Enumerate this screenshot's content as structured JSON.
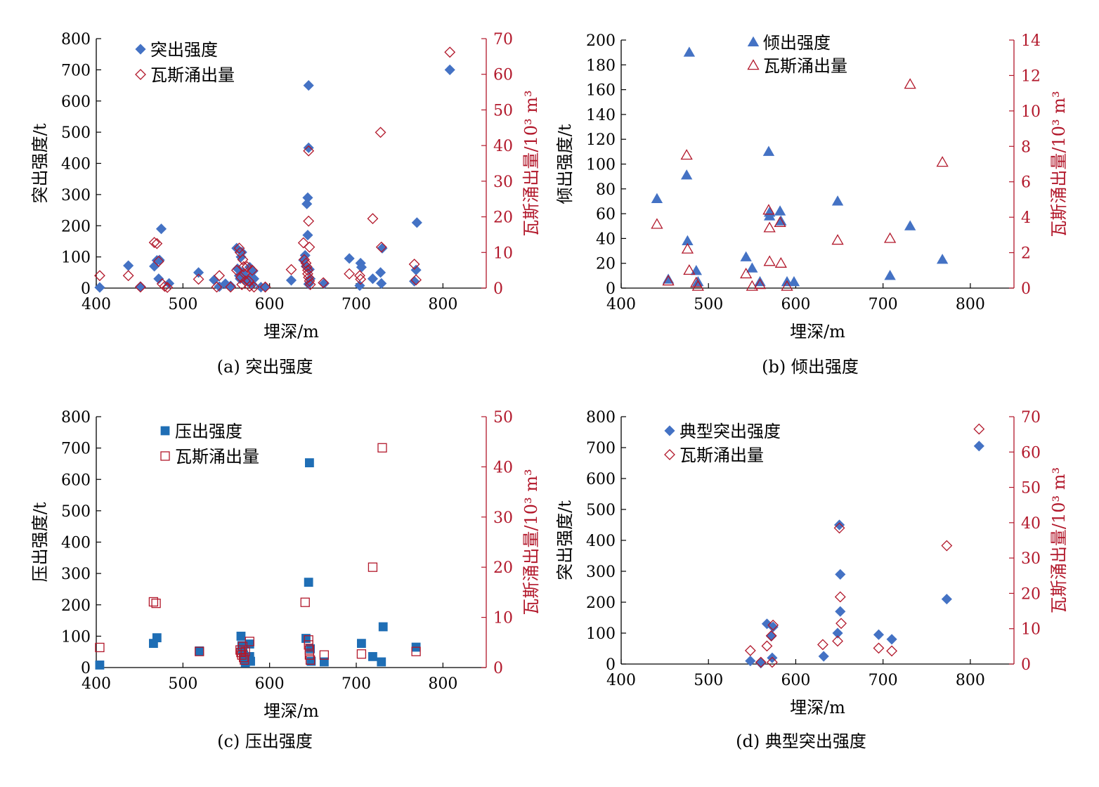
{
  "colors": {
    "blue": "#4472c4",
    "blue_square": "#1f6eb5",
    "red": "#b2182b"
  },
  "chart_data": [
    {
      "type": "scatter",
      "caption": "(a) 突出强度",
      "xlabel": "埋深/m",
      "ylabel": "突出强度/t",
      "ylabel_right": "瓦斯涌出量/10³ m³",
      "xlim": [
        400,
        850
      ],
      "xticks": [
        400,
        500,
        600,
        700,
        800
      ],
      "ylim": [
        0,
        800
      ],
      "yticks": [
        0,
        100,
        200,
        300,
        400,
        500,
        600,
        700,
        800
      ],
      "ylim_right": [
        0,
        70
      ],
      "yticks_right": [
        0,
        10,
        20,
        30,
        40,
        50,
        60,
        70
      ],
      "legend_position": "top-left",
      "series": [
        {
          "name": "突出强度",
          "marker": "diamond-filled",
          "color": "#4472c4",
          "axis": "left",
          "x": [
            404,
            437,
            451,
            467,
            470,
            472,
            473,
            475,
            484,
            518,
            536,
            542,
            549,
            555,
            562,
            563,
            565,
            566,
            567,
            568,
            569,
            570,
            571,
            572,
            575,
            577,
            578,
            580,
            581,
            582,
            590,
            595,
            625,
            639,
            641,
            642,
            643,
            644,
            644,
            645,
            645,
            645,
            646,
            647,
            663,
            692,
            704,
            705,
            706,
            719,
            728,
            729,
            730,
            767,
            769,
            770,
            808
          ],
          "y": [
            2,
            72,
            5,
            70,
            89,
            30,
            90,
            190,
            15,
            50,
            26,
            5,
            14,
            7,
            128,
            62,
            40,
            30,
            100,
            115,
            50,
            44,
            27,
            28,
            20,
            67,
            35,
            12,
            55,
            30,
            3,
            3,
            25,
            90,
            105,
            70,
            270,
            290,
            170,
            450,
            650,
            13,
            60,
            30,
            15,
            95,
            8,
            80,
            67,
            30,
            50,
            15,
            128,
            22,
            58,
            210,
            700
          ]
        },
        {
          "name": "瓦斯涌出量",
          "marker": "diamond-open",
          "color": "#b2182b",
          "axis": "right",
          "x": [
            404,
            437,
            451,
            467,
            470,
            472,
            476,
            479,
            482,
            518,
            539,
            542,
            555,
            562,
            565,
            566,
            567,
            568,
            569,
            570,
            571,
            572,
            574,
            576,
            577,
            580,
            582,
            595,
            625,
            639,
            640,
            642,
            643,
            644,
            644,
            645,
            645,
            645,
            646,
            646,
            647,
            662,
            692,
            704,
            705,
            719,
            728,
            729,
            767,
            769,
            808
          ],
          "y": [
            3.5,
            3.5,
            0.3,
            12.8,
            12.5,
            7.5,
            1.2,
            0.5,
            0.2,
            2.5,
            0.3,
            3.5,
            0.3,
            5,
            11.2,
            10,
            3,
            1,
            8,
            6,
            4,
            2,
            6,
            2,
            0.5,
            5,
            0.3,
            0.3,
            5.2,
            12.7,
            8,
            7,
            6,
            5,
            4,
            18.8,
            38.5,
            3,
            11.5,
            2,
            1,
            1.5,
            4,
            3.5,
            2.5,
            19.5,
            43.7,
            11.5,
            6.7,
            2.3,
            66.2
          ]
        }
      ]
    },
    {
      "type": "scatter",
      "caption": "(b) 倾出强度",
      "xlabel": "埋深/m",
      "ylabel": "倾出强度/t",
      "ylabel_right": "瓦斯涌出量/10³ m³",
      "xlim": [
        400,
        850
      ],
      "xticks": [
        400,
        500,
        600,
        700,
        800
      ],
      "ylim": [
        0,
        200
      ],
      "yticks": [
        0,
        20,
        40,
        60,
        80,
        100,
        120,
        140,
        160,
        180,
        200
      ],
      "ylim_right": [
        0,
        14
      ],
      "yticks_right": [
        0,
        2,
        4,
        6,
        8,
        10,
        12,
        14
      ],
      "legend_position": "top-center",
      "series": [
        {
          "name": "倾出强度",
          "marker": "triangle-filled",
          "color": "#4472c4",
          "axis": "left",
          "x": [
            441,
            454,
            475,
            476,
            478,
            486,
            488,
            543,
            550,
            559,
            569,
            570,
            570,
            582,
            583,
            590,
            598,
            648,
            708,
            731,
            768
          ],
          "y": [
            72,
            7,
            91,
            38,
            190,
            14,
            5,
            25,
            16,
            5,
            110,
            61,
            58,
            62,
            54,
            5,
            5,
            70,
            10,
            50,
            23
          ],
          "visible_in_legend": true
        },
        {
          "name": "瓦斯涌出量",
          "marker": "triangle-open",
          "color": "#b2182b",
          "axis": "right",
          "x": [
            441,
            454,
            475,
            476,
            478,
            486,
            488,
            543,
            550,
            559,
            569,
            570,
            570,
            582,
            583,
            590,
            648,
            708,
            731,
            768
          ],
          "y": [
            3.6,
            0.4,
            7.5,
            2.2,
            1,
            0.3,
            0.1,
            0.8,
            0.1,
            0.2,
            4.4,
            3.4,
            1.5,
            3.7,
            1.4,
            0.1,
            2.7,
            2.8,
            11.5,
            7.1
          ]
        }
      ]
    },
    {
      "type": "scatter",
      "caption": "(c) 压出强度",
      "xlabel": "埋深/m",
      "ylabel": "压出强度/t",
      "ylabel_right": "瓦斯涌出量/10³ m³",
      "xlim": [
        400,
        850
      ],
      "xticks": [
        400,
        500,
        600,
        700,
        800
      ],
      "ylim": [
        0,
        800
      ],
      "yticks": [
        0,
        100,
        200,
        300,
        400,
        500,
        600,
        700,
        800
      ],
      "ylim_right": [
        0,
        50
      ],
      "yticks_right": [
        0,
        10,
        20,
        30,
        40,
        50
      ],
      "legend_position": "top-left",
      "series": [
        {
          "name": "压出强度",
          "marker": "square-filled",
          "color": "#1f6eb5",
          "axis": "left",
          "x": [
            404,
            466,
            470,
            519,
            567,
            568,
            569,
            570,
            571,
            572,
            577,
            577,
            578,
            642,
            645,
            646,
            647,
            648,
            663,
            706,
            719,
            729,
            731,
            769
          ],
          "y": [
            8,
            77,
            95,
            53,
            100,
            70,
            55,
            40,
            25,
            15,
            75,
            35,
            20,
            93,
            272,
            653,
            60,
            20,
            18,
            77,
            35,
            18,
            130,
            65
          ]
        },
        {
          "name": "瓦斯涌出量",
          "marker": "square-open",
          "color": "#b2182b",
          "axis": "right",
          "x": [
            404,
            466,
            469,
            519,
            566,
            567,
            568,
            569,
            570,
            571,
            572,
            577,
            641,
            645,
            645,
            646,
            646,
            647,
            663,
            706,
            719,
            730,
            769
          ],
          "y": [
            4,
            13.1,
            12.8,
            3.2,
            3.5,
            3,
            2.5,
            4.2,
            2,
            1.5,
            3.2,
            5.2,
            13,
            5.5,
            4.5,
            3.5,
            2.5,
            1.5,
            2.5,
            2.7,
            20,
            43.8,
            3.2
          ]
        }
      ]
    },
    {
      "type": "scatter",
      "caption": "(d) 典型突出强度",
      "xlabel": "埋深/m",
      "ylabel": "突出强度/t",
      "ylabel_right": "瓦斯涌出量/10³ m³",
      "xlim": [
        400,
        850
      ],
      "xticks": [
        400,
        500,
        600,
        700,
        800
      ],
      "ylim": [
        0,
        800
      ],
      "yticks": [
        0,
        100,
        200,
        300,
        400,
        500,
        600,
        700,
        800
      ],
      "ylim_right": [
        0,
        70
      ],
      "yticks_right": [
        0,
        10,
        20,
        30,
        40,
        50,
        60,
        70
      ],
      "legend_position": "top-left",
      "series": [
        {
          "name": "典型突出强度",
          "marker": "diamond-filled",
          "color": "#4472c4",
          "axis": "left",
          "x": [
            548,
            560,
            567,
            572,
            573,
            574,
            632,
            648,
            650,
            651,
            651,
            695,
            710,
            773,
            810
          ],
          "y": [
            10,
            3,
            130,
            90,
            20,
            120,
            25,
            100,
            450,
            290,
            170,
            95,
            80,
            210,
            705
          ]
        },
        {
          "name": "瓦斯涌出量",
          "marker": "diamond-open",
          "color": "#b2182b",
          "axis": "right",
          "x": [
            548,
            560,
            567,
            572,
            573,
            574,
            631,
            648,
            650,
            651,
            652,
            695,
            710,
            773,
            810
          ],
          "y": [
            3.8,
            0.5,
            5.1,
            8,
            0.5,
            11,
            5.5,
            6.5,
            38.5,
            19,
            11.5,
            4.5,
            3.7,
            33.5,
            66.5
          ]
        }
      ]
    }
  ]
}
